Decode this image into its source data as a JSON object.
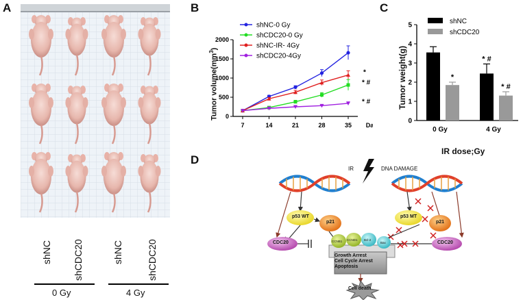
{
  "panel_a": {
    "label": "A",
    "columns": [
      "shNC",
      "shCDC20",
      "shNC",
      "shCDC20"
    ],
    "doses": [
      "0 Gy",
      "4 Gy"
    ]
  },
  "panel_b": {
    "label": "B",
    "ylabel_main": "Tumor volume(mm",
    "ylabel_sup": "3",
    "ylabel_end": ")",
    "xlabel": "Day",
    "markers": [
      "*",
      "* #",
      "* #"
    ]
  },
  "panel_c": {
    "label": "C",
    "xlabel": "IR dose;Gy",
    "ylabel": "Tumor weight(g)",
    "markers": [
      "*",
      "* #",
      "* #"
    ]
  },
  "panel_d": {
    "label": "D",
    "ir": "IR",
    "dna_damage": "DNA DAMAGE",
    "p53wt": "p53 WT",
    "p53mt": "p53 MT",
    "p21": "p21",
    "cdc20": "CDC20",
    "ccnb1": "CCNB1",
    "ccnd1": "CCND1",
    "bcl2": "Bcl-2",
    "bax": "Bax",
    "outcome": [
      "Growth Arrest",
      "Cell Cycle Arrest",
      "Apoptosis"
    ],
    "death": "Cell death"
  },
  "chart_data": [
    {
      "type": "line",
      "x": [
        7,
        14,
        21,
        28,
        35
      ],
      "xlabel": "Day",
      "ylabel": "Tumor volume(mm3)",
      "ylim": [
        0,
        2000
      ],
      "yticks": [
        0,
        500,
        1000,
        1500,
        2000
      ],
      "legend_position": "top-left",
      "series": [
        {
          "name": "shNC-0 Gy",
          "color": "#2323e0",
          "values": [
            150,
            520,
            760,
            1130,
            1660
          ],
          "err": [
            0,
            30,
            40,
            90,
            180
          ]
        },
        {
          "name": "shCDC20-0 Gy",
          "color": "#22dd22",
          "values": [
            150,
            230,
            380,
            560,
            820
          ],
          "err": [
            0,
            25,
            40,
            60,
            140
          ]
        },
        {
          "name": "shNC-IR- 4Gy",
          "color": "#e02020",
          "values": [
            150,
            460,
            630,
            880,
            1080
          ],
          "err": [
            0,
            30,
            50,
            70,
            110
          ]
        },
        {
          "name": "shCDC20-4Gy",
          "color": "#a020e0",
          "values": [
            150,
            210,
            250,
            280,
            340
          ],
          "err": [
            0,
            20,
            20,
            20,
            40
          ]
        }
      ]
    },
    {
      "type": "bar",
      "categories": [
        "0 Gy",
        "4 Gy"
      ],
      "xlabel": "IR dose;Gy",
      "ylabel": "Tumor weight(g)",
      "ylim": [
        0,
        5
      ],
      "yticks": [
        0,
        1,
        2,
        3,
        4,
        5
      ],
      "legend_position": "top-left",
      "series": [
        {
          "name": "shNC",
          "color": "#000000",
          "values": [
            3.55,
            2.45
          ],
          "err": [
            0.3,
            0.5
          ]
        },
        {
          "name": "shCDC20",
          "color": "#999999",
          "values": [
            1.85,
            1.3
          ],
          "err": [
            0.15,
            0.2
          ]
        }
      ]
    }
  ]
}
